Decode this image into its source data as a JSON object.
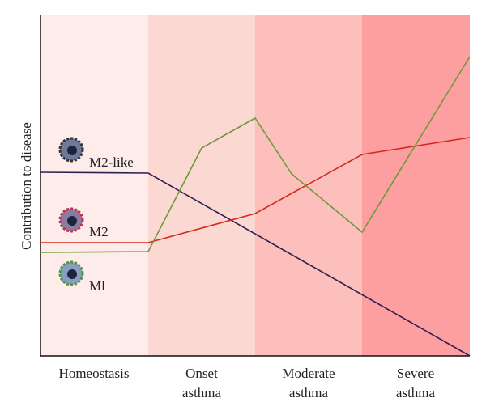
{
  "y_axis_label": "Contribution to disease",
  "stages": [
    [
      "Homeostasis"
    ],
    [
      "Onset",
      "asthma"
    ],
    [
      "Moderate",
      "asthma"
    ],
    [
      "Severe",
      "asthma"
    ]
  ],
  "cells": [
    "M2-like",
    "M2",
    "Ml"
  ]
}
